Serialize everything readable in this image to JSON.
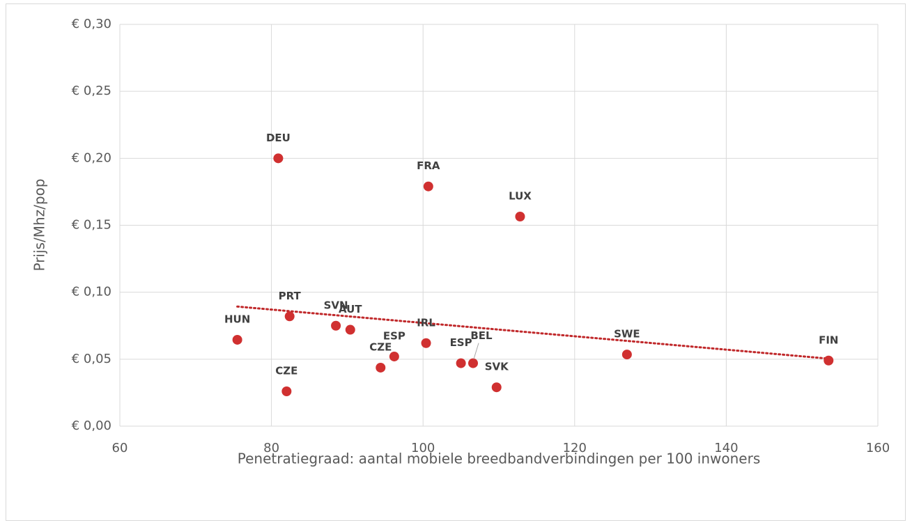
{
  "chart_data": {
    "type": "scatter",
    "xlabel": "Penetratiegraad: aantal mobiele breedbandverbindingen per 100 inwoners",
    "ylabel": "Prijs/Mhz/pop",
    "labels": [
      "DEU",
      "FRA",
      "LUX",
      "HUN",
      "PRT",
      "SVN",
      "AUT",
      "CZE",
      "ESP",
      "IRL",
      "ESP",
      "BEL",
      "SVK",
      "CZE",
      "SWE",
      "FIN"
    ],
    "x": [
      80.9,
      100.7,
      112.8,
      75.5,
      82.4,
      88.5,
      90.4,
      94.4,
      96.2,
      100.4,
      105.0,
      106.6,
      109.7,
      82.0,
      126.9,
      153.5
    ],
    "y": [
      0.2,
      0.179,
      0.1565,
      0.0645,
      0.082,
      0.075,
      0.072,
      0.0437,
      0.052,
      0.062,
      0.047,
      0.047,
      0.029,
      0.026,
      0.0535,
      0.049
    ],
    "color": "#d03030",
    "trendline": {
      "x": [
        75.5,
        153.5
      ],
      "y": [
        0.0893,
        0.0504
      ],
      "color": "#c0282a"
    },
    "xlim": [
      60,
      160
    ],
    "xticks": [
      60,
      80,
      100,
      120,
      140,
      160
    ],
    "ylim": [
      0,
      0.3
    ],
    "yticks": [
      {
        "value": 0,
        "label": "€ 0,00"
      },
      {
        "value": 0.05,
        "label": "€ 0,05"
      },
      {
        "value": 0.1,
        "label": "€ 0,10"
      },
      {
        "value": 0.15,
        "label": "€ 0,15"
      },
      {
        "value": 0.2,
        "label": "€ 0,20"
      },
      {
        "value": 0.25,
        "label": "€ 0,25"
      },
      {
        "value": 0.3,
        "label": "€ 0,30"
      }
    ],
    "grid": true
  }
}
